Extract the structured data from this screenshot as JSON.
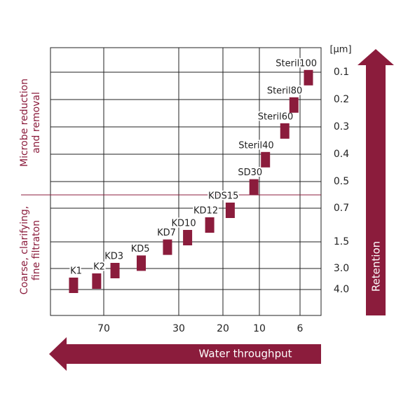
{
  "chart_data": {
    "type": "filter-map",
    "y_unit": "[µm]",
    "y_axis_label": "Retention",
    "x_axis_label": "Water throughput",
    "region_labels": [
      [
        "Microbe reduction",
        "and removal"
      ],
      [
        "Coarse, clarifying,",
        "fine filtraton"
      ]
    ],
    "color": "#8b1c3c",
    "xlim": [
      100,
      4
    ],
    "xticks": [
      70,
      30,
      20,
      10,
      6
    ],
    "ylim": [
      0,
      5.2
    ],
    "yticks": [
      0.1,
      0.2,
      0.3,
      0.4,
      0.5,
      0.7,
      1.5,
      {
        "value": 3,
        "label": "3.0"
      },
      {
        "value": 4,
        "label": "4.0"
      }
    ],
    "divider": 0.6,
    "grid": true,
    "points": [
      {
        "label": "K1",
        "x": 87,
        "y": 3.8
      },
      {
        "label": "K2",
        "x": 74,
        "y": 3.6
      },
      {
        "label": "KD3",
        "x": 64,
        "y": 3.1
      },
      {
        "label": "KD5",
        "x": 50,
        "y": 2.7
      },
      {
        "label": "KD7",
        "x": 36,
        "y": 1.8
      },
      {
        "label": "KD10",
        "x": 28,
        "y": 1.4
      },
      {
        "label": "KD12",
        "x": 23,
        "y": 1.1
      },
      {
        "label": "KDS15",
        "x": 18,
        "y": 0.75
      },
      {
        "label": "SD30",
        "x": 11.5,
        "y": 0.54
      },
      {
        "label": "Steril40",
        "x": 9.4,
        "y": 0.42
      },
      {
        "label": "Steril60",
        "x": 7.5,
        "y": 0.315
      },
      {
        "label": "Steril80",
        "x": 6.6,
        "y": 0.22
      },
      {
        "label": "Steril100",
        "x": 5.2,
        "y": 0.12
      }
    ]
  }
}
